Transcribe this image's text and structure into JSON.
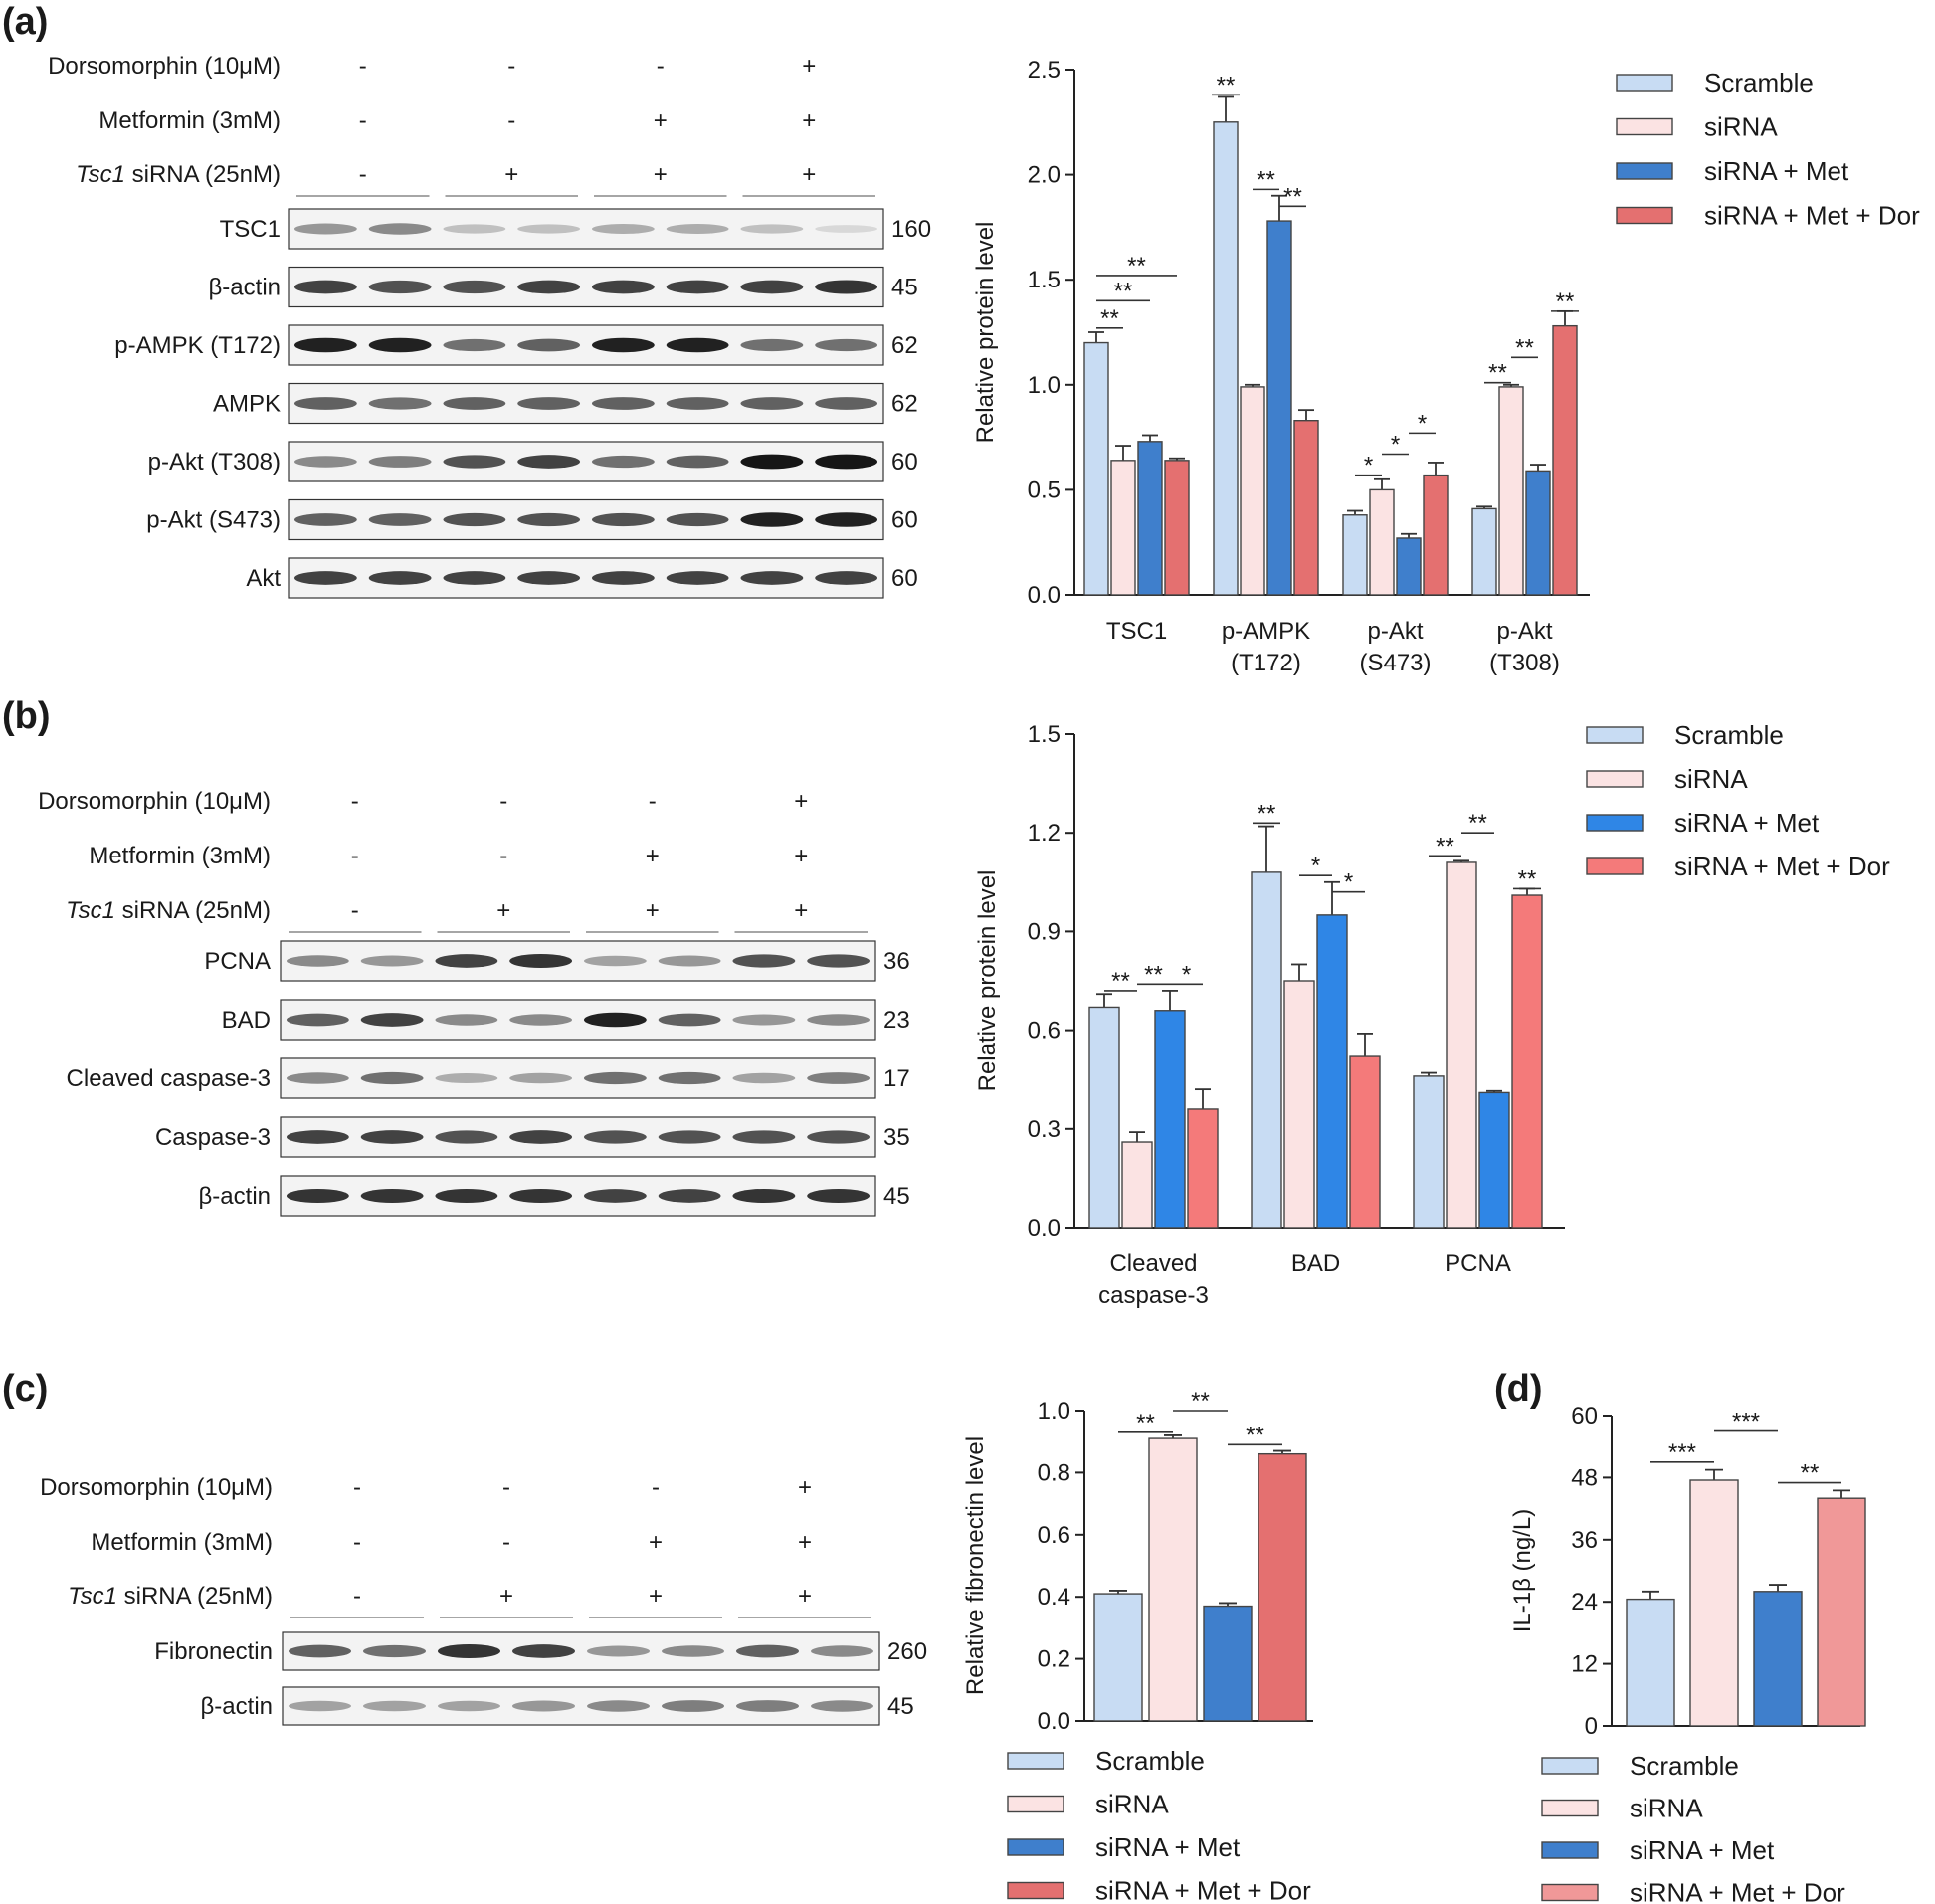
{
  "colors": {
    "scramble": "#c8dcf3",
    "sirna": "#fbe3e3",
    "sirna_met": "#3f7fcc",
    "sirna_met_dor": "#e47070",
    "sirna_met_b": "#2f86e6",
    "sirna_met_dor_b": "#f47a7a",
    "sirna_met_dor_d": "#f09898"
  },
  "legend": [
    "Scramble",
    "siRNA",
    "siRNA + Met",
    "siRNA + Met + Dor"
  ],
  "blot_a": {
    "panel": "(a)",
    "treatments": [
      {
        "label": "Dorsomorphin (10μM)",
        "signs": [
          "-",
          "-",
          "-",
          "+"
        ]
      },
      {
        "label": "Metformin (3mM)",
        "signs": [
          "-",
          "-",
          "+",
          "+"
        ]
      },
      {
        "italic": "Tsc1",
        "label": " siRNA (25nM)",
        "signs": [
          "-",
          "+",
          "+",
          "+"
        ]
      }
    ],
    "bands": [
      {
        "name": "TSC1",
        "kda": "160",
        "intensity": [
          0.55,
          0.6,
          0.35,
          0.35,
          0.45,
          0.45,
          0.35,
          0.2
        ]
      },
      {
        "name": "β-actin",
        "kda": "45",
        "intensity": [
          0.85,
          0.8,
          0.8,
          0.85,
          0.85,
          0.85,
          0.85,
          0.9
        ]
      },
      {
        "name": "p-AMPK (T172)",
        "kda": "62",
        "intensity": [
          0.95,
          0.95,
          0.7,
          0.75,
          0.95,
          0.95,
          0.7,
          0.7
        ]
      },
      {
        "name": "AMPK",
        "kda": "62",
        "intensity": [
          0.75,
          0.7,
          0.75,
          0.75,
          0.75,
          0.75,
          0.75,
          0.75
        ]
      },
      {
        "name": "p-Akt (T308)",
        "kda": "60",
        "intensity": [
          0.6,
          0.65,
          0.8,
          0.85,
          0.7,
          0.75,
          0.98,
          0.98
        ]
      },
      {
        "name": "p-Akt (S473)",
        "kda": "60",
        "intensity": [
          0.75,
          0.75,
          0.8,
          0.8,
          0.8,
          0.8,
          0.95,
          0.95
        ]
      },
      {
        "name": "Akt",
        "kda": "60",
        "intensity": [
          0.85,
          0.85,
          0.85,
          0.85,
          0.85,
          0.85,
          0.85,
          0.85
        ]
      }
    ]
  },
  "blot_b": {
    "panel": "(b)",
    "treatments": [
      {
        "label": "Dorsomorphin (10μM)",
        "signs": [
          "-",
          "-",
          "-",
          "+"
        ]
      },
      {
        "label": "Metformin (3mM)",
        "signs": [
          "-",
          "-",
          "+",
          "+"
        ]
      },
      {
        "italic": "Tsc1",
        "label": " siRNA (25nM)",
        "signs": [
          "-",
          "+",
          "+",
          "+"
        ]
      }
    ],
    "bands": [
      {
        "name": "PCNA",
        "kda": "36",
        "intensity": [
          0.6,
          0.55,
          0.85,
          0.9,
          0.5,
          0.55,
          0.8,
          0.8
        ]
      },
      {
        "name": "BAD",
        "kda": "23",
        "intensity": [
          0.75,
          0.85,
          0.6,
          0.6,
          0.95,
          0.75,
          0.55,
          0.6
        ]
      },
      {
        "name": "Cleaved caspase-3",
        "kda": "17",
        "intensity": [
          0.6,
          0.7,
          0.45,
          0.5,
          0.7,
          0.7,
          0.5,
          0.65
        ]
      },
      {
        "name": "Caspase-3",
        "kda": "35",
        "intensity": [
          0.85,
          0.85,
          0.8,
          0.85,
          0.8,
          0.8,
          0.8,
          0.8
        ]
      },
      {
        "name": "β-actin",
        "kda": "45",
        "intensity": [
          0.9,
          0.9,
          0.9,
          0.9,
          0.85,
          0.85,
          0.9,
          0.9
        ]
      }
    ]
  },
  "blot_c": {
    "panel": "(c)",
    "treatments": [
      {
        "label": "Dorsomorphin (10μM)",
        "signs": [
          "-",
          "-",
          "-",
          "+"
        ]
      },
      {
        "label": "Metformin (3mM)",
        "signs": [
          "-",
          "-",
          "+",
          "+"
        ]
      },
      {
        "italic": "Tsc1",
        "label": " siRNA (25nM)",
        "signs": [
          "-",
          "+",
          "+",
          "+"
        ]
      }
    ],
    "bands": [
      {
        "name": "Fibronectin",
        "kda": "260",
        "intensity": [
          0.75,
          0.7,
          0.9,
          0.85,
          0.55,
          0.6,
          0.75,
          0.6
        ]
      },
      {
        "name": "β-actin",
        "kda": "45",
        "intensity": [
          0.5,
          0.5,
          0.5,
          0.55,
          0.6,
          0.65,
          0.65,
          0.6
        ]
      }
    ]
  },
  "chart_data": [
    {
      "type": "bar",
      "panel": "(a)",
      "ylabel": "Relative protein level",
      "ylim": [
        0,
        2.5
      ],
      "yticks": [
        "0.0",
        "0.5",
        "1.0",
        "1.5",
        "2.0",
        "2.5"
      ],
      "categories": [
        [
          "TSC1"
        ],
        [
          "p-AMPK",
          "(T172)"
        ],
        [
          "p-Akt",
          "(S473)"
        ],
        [
          "p-Akt",
          "(T308)"
        ]
      ],
      "series": [
        {
          "name": "Scramble",
          "values": [
            1.2,
            2.25,
            0.38,
            0.41
          ],
          "errors": [
            0.05,
            0.12,
            0.02,
            0.01
          ]
        },
        {
          "name": "siRNA",
          "values": [
            0.64,
            0.99,
            0.5,
            0.99
          ],
          "errors": [
            0.07,
            0.01,
            0.05,
            0.01
          ]
        },
        {
          "name": "siRNA + Met",
          "values": [
            0.73,
            1.78,
            0.27,
            0.59
          ],
          "errors": [
            0.03,
            0.12,
            0.02,
            0.03
          ]
        },
        {
          "name": "siRNA + Met + Dor",
          "values": [
            0.64,
            0.83,
            0.57,
            1.28
          ],
          "errors": [
            0.01,
            0.05,
            0.06,
            0.07
          ]
        }
      ],
      "annotations": [
        {
          "text": "**",
          "cat": 0,
          "from": 0,
          "to": 1,
          "y": 1.27
        },
        {
          "text": "**",
          "cat": 0,
          "from": 0,
          "to": 2,
          "y": 1.4
        },
        {
          "text": "**",
          "cat": 0,
          "from": 0,
          "to": 3,
          "y": 1.52
        },
        {
          "text": "**",
          "cat": 1,
          "from": 0,
          "to": 0,
          "y": 2.38
        },
        {
          "text": "**",
          "cat": 1,
          "from": 1,
          "to": 2,
          "y": 1.93
        },
        {
          "text": "**",
          "cat": 1,
          "from": 2,
          "to": 3,
          "y": 1.85
        },
        {
          "text": "*",
          "cat": 2,
          "from": 0,
          "to": 1,
          "y": 0.57
        },
        {
          "text": "*",
          "cat": 2,
          "from": 1,
          "to": 2,
          "y": 0.67
        },
        {
          "text": "*",
          "cat": 2,
          "from": 2,
          "to": 3,
          "y": 0.77
        },
        {
          "text": "**",
          "cat": 3,
          "from": 0,
          "to": 1,
          "y": 1.01
        },
        {
          "text": "**",
          "cat": 3,
          "from": 1,
          "to": 2,
          "y": 1.13
        },
        {
          "text": "**",
          "cat": 3,
          "from": 3,
          "to": 3,
          "y": 1.35
        }
      ]
    },
    {
      "type": "bar",
      "panel": "(b)",
      "ylabel": "Relative protein level",
      "ylim": [
        0,
        1.5
      ],
      "yticks": [
        "0.0",
        "0.3",
        "0.6",
        "0.9",
        "1.2",
        "1.5"
      ],
      "categories": [
        [
          "Cleaved",
          "caspase-3"
        ],
        [
          "BAD"
        ],
        [
          "PCNA"
        ]
      ],
      "series": [
        {
          "name": "Scramble",
          "values": [
            0.67,
            1.08,
            0.46
          ],
          "errors": [
            0.04,
            0.14,
            0.01
          ]
        },
        {
          "name": "siRNA",
          "values": [
            0.26,
            0.75,
            1.11
          ],
          "errors": [
            0.03,
            0.05,
            0.005
          ]
        },
        {
          "name": "siRNA + Met",
          "values": [
            0.66,
            0.95,
            0.41
          ],
          "errors": [
            0.06,
            0.1,
            0.005
          ]
        },
        {
          "name": "siRNA + Met + Dor",
          "values": [
            0.36,
            0.52,
            1.01
          ],
          "errors": [
            0.06,
            0.07,
            0.02
          ]
        }
      ],
      "annotations": [
        {
          "text": "**",
          "cat": 0,
          "from": 0,
          "to": 1,
          "y": 0.72
        },
        {
          "text": "**",
          "cat": 0,
          "from": 1,
          "to": 2,
          "y": 0.74
        },
        {
          "text": "*",
          "cat": 0,
          "from": 2,
          "to": 3,
          "y": 0.74
        },
        {
          "text": "**",
          "cat": 1,
          "from": 0,
          "to": 0,
          "y": 1.23
        },
        {
          "text": "*",
          "cat": 1,
          "from": 1,
          "to": 2,
          "y": 1.07
        },
        {
          "text": "*",
          "cat": 1,
          "from": 2,
          "to": 3,
          "y": 1.02
        },
        {
          "text": "**",
          "cat": 2,
          "from": 0,
          "to": 1,
          "y": 1.13
        },
        {
          "text": "**",
          "cat": 2,
          "from": 1,
          "to": 2,
          "y": 1.2
        },
        {
          "text": "**",
          "cat": 2,
          "from": 3,
          "to": 3,
          "y": 1.03
        }
      ]
    },
    {
      "type": "bar",
      "panel": "(c)",
      "ylabel": "Relative fibronectin level",
      "ylim": [
        0,
        1.0
      ],
      "yticks": [
        "0.0",
        "0.2",
        "0.4",
        "0.6",
        "0.8",
        "1.0"
      ],
      "categories": [
        "Scramble",
        "siRNA",
        "siRNA + Met",
        "siRNA + Met + Dor"
      ],
      "values": [
        0.41,
        0.91,
        0.37,
        0.86
      ],
      "errors": [
        0.01,
        0.01,
        0.01,
        0.01
      ],
      "annotations": [
        {
          "text": "**",
          "from": 0,
          "to": 1,
          "y": 0.93
        },
        {
          "text": "**",
          "from": 1,
          "to": 2,
          "y": 1.0
        },
        {
          "text": "**",
          "from": 2,
          "to": 3,
          "y": 0.89
        }
      ]
    },
    {
      "type": "bar",
      "panel": "(d)",
      "ylabel": "IL-1β (ng/L)",
      "ylim": [
        0,
        60
      ],
      "yticks": [
        "0",
        "12",
        "24",
        "36",
        "48",
        "60"
      ],
      "categories": [
        "Scramble",
        "siRNA",
        "siRNA + Met",
        "siRNA + Met + Dor"
      ],
      "values": [
        24.5,
        47.5,
        26,
        44
      ],
      "errors": [
        1.5,
        2,
        1.3,
        1.5
      ],
      "annotations": [
        {
          "text": "***",
          "from": 0,
          "to": 1,
          "y": 51
        },
        {
          "text": "***",
          "from": 1,
          "to": 2,
          "y": 57
        },
        {
          "text": "**",
          "from": 2,
          "to": 3,
          "y": 47
        }
      ]
    }
  ]
}
